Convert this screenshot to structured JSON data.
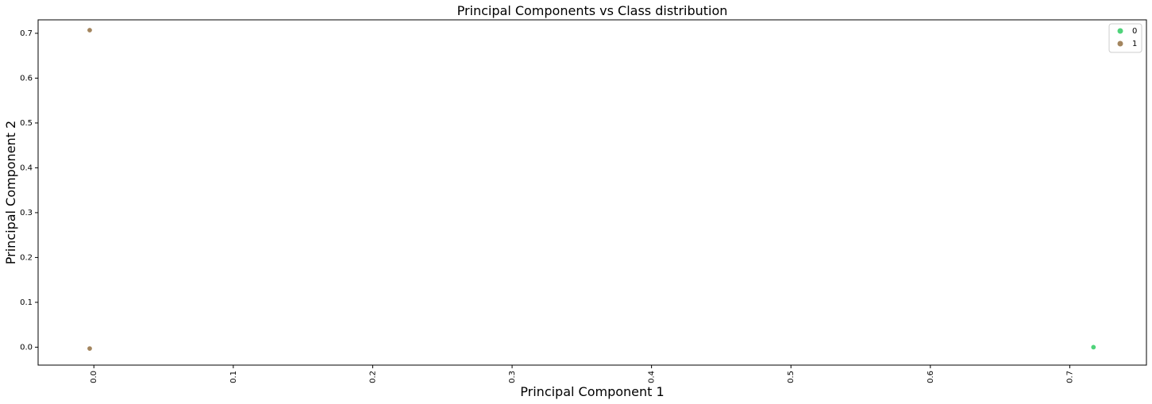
{
  "chart_data": {
    "type": "scatter",
    "title": "Principal Components vs Class distribution",
    "xlabel": "Principal Component 1",
    "ylabel": "Principal Component 2",
    "xlim": [
      -0.04,
      0.755
    ],
    "ylim": [
      -0.04,
      0.73
    ],
    "xticks": [
      0.0,
      0.1,
      0.2,
      0.3,
      0.4,
      0.5,
      0.6,
      0.7
    ],
    "yticks": [
      0.0,
      0.1,
      0.2,
      0.3,
      0.4,
      0.5,
      0.6,
      0.7
    ],
    "x_tick_rotation": "vertical",
    "grid": false,
    "legend_position": "top-right",
    "series": [
      {
        "name": "0",
        "color": "#4fd37a",
        "points": [
          {
            "x": 0.717,
            "y": 0.0
          }
        ]
      },
      {
        "name": "1",
        "color": "#a3855e",
        "points": [
          {
            "x": -0.003,
            "y": 0.707
          },
          {
            "x": -0.003,
            "y": -0.003
          }
        ]
      }
    ]
  }
}
